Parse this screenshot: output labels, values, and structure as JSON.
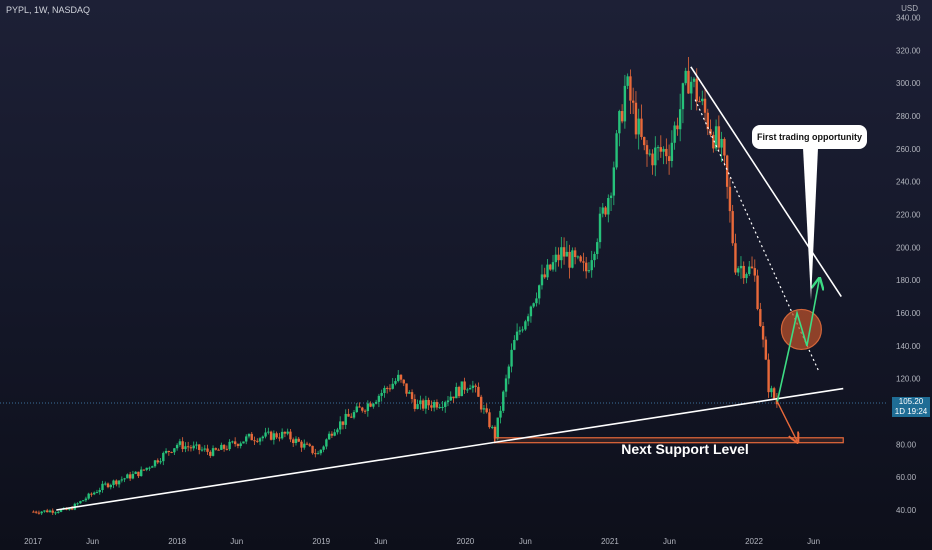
{
  "header": {
    "symbol": "PYPL, 1W, NASDAQ",
    "currency": "USD"
  },
  "price_tag": {
    "price": "105.20",
    "countdown": "1D 19:24"
  },
  "annotations": {
    "callout": "First trading opportunity",
    "support_label": "Next Support Level"
  },
  "colors": {
    "up": "#26c17a",
    "down": "#e8693a",
    "trendline": "#ffffff",
    "support_zone": "#e8693a",
    "circle": "#b8502b",
    "arrow_up": "#3ddc84",
    "arrow_down": "#e8693a",
    "price_tag": "#1f6d95"
  },
  "chart_data": {
    "type": "candlestick",
    "y_axis": {
      "ticks": [
        "340.00",
        "320.00",
        "300.00",
        "280.00",
        "260.00",
        "240.00",
        "220.00",
        "200.00",
        "180.00",
        "160.00",
        "140.00",
        "120.00",
        "100.00",
        "80.00",
        "60.00",
        "40.00"
      ],
      "ylim": [
        30,
        345
      ]
    },
    "x_axis": {
      "ticks": [
        "2017",
        "Jun",
        "2018",
        "Jun",
        "2019",
        "Jun",
        "2020",
        "Jun",
        "2021",
        "Jun",
        "2022",
        "Jun"
      ]
    },
    "current_price": 105.2,
    "close_path": [
      [
        "2017-01-02",
        39
      ],
      [
        "2017-04-01",
        40
      ],
      [
        "2017-07-01",
        55
      ],
      [
        "2017-10-01",
        63
      ],
      [
        "2018-01-01",
        80
      ],
      [
        "2018-04-01",
        75
      ],
      [
        "2018-07-01",
        84
      ],
      [
        "2018-10-01",
        86
      ],
      [
        "2018-12-24",
        74
      ],
      [
        "2019-02-01",
        90
      ],
      [
        "2019-05-01",
        105
      ],
      [
        "2019-07-15",
        120
      ],
      [
        "2019-09-01",
        103
      ],
      [
        "2019-11-01",
        106
      ],
      [
        "2020-01-15",
        118
      ],
      [
        "2020-03-16",
        85
      ],
      [
        "2020-05-01",
        140
      ],
      [
        "2020-07-01",
        175
      ],
      [
        "2020-09-01",
        197
      ],
      [
        "2020-11-01",
        185
      ],
      [
        "2021-01-01",
        235
      ],
      [
        "2021-02-10",
        300
      ],
      [
        "2021-04-01",
        255
      ],
      [
        "2021-06-01",
        260
      ],
      [
        "2021-07-20",
        305
      ],
      [
        "2021-09-01",
        280
      ],
      [
        "2021-10-15",
        255
      ],
      [
        "2021-11-15",
        190
      ],
      [
        "2022-01-01",
        185
      ],
      [
        "2022-02-07",
        115
      ],
      [
        "2022-02-28",
        105
      ]
    ],
    "trendlines": [
      {
        "name": "long-term support",
        "from": [
          "2017-03-01",
          40
        ],
        "to": [
          "2022-08-15",
          114
        ]
      },
      {
        "name": "upper resistance",
        "from": [
          "2021-07-25",
          310
        ],
        "to": [
          "2022-08-10",
          170
        ]
      },
      {
        "name": "dotted resistance",
        "from": [
          "2021-08-05",
          290
        ],
        "to": [
          "2022-06-15",
          124
        ]
      }
    ],
    "support_zone": {
      "from": "2020-03-15",
      "to": "2022-08-15",
      "low": 81,
      "high": 84
    },
    "projection_path": [
      [
        "2022-03-01",
        106
      ],
      [
        "2022-04-20",
        160
      ],
      [
        "2022-05-15",
        140
      ],
      [
        "2022-06-15",
        180
      ]
    ],
    "projection_down": [
      [
        "2022-03-01",
        106
      ],
      [
        "2022-04-20",
        82
      ]
    ],
    "highlight_circle": {
      "center": [
        "2022-05-01",
        150
      ]
    }
  }
}
